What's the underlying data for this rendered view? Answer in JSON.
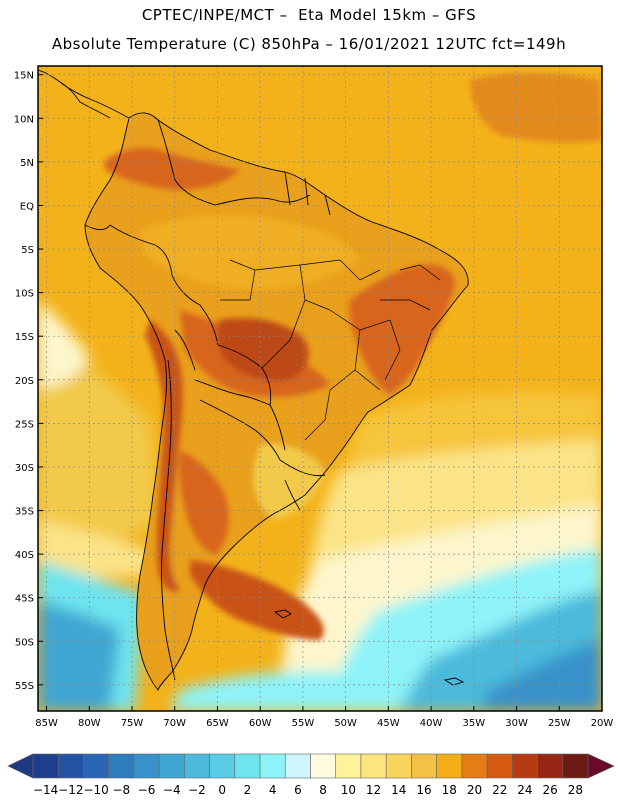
{
  "header": {
    "line1": "CPTEC/INPE/MCT –  Eta Model 15km – GFS",
    "line2": "Absolute Temperature (C) 850hPa – 16/01/2021 12UTC fct=149h"
  },
  "map": {
    "lat_labels": [
      "15N",
      "10N",
      "5N",
      "EQ",
      "5S",
      "10S",
      "15S",
      "20S",
      "25S",
      "30S",
      "35S",
      "40S",
      "45S",
      "50S",
      "55S"
    ],
    "lon_labels": [
      "85W",
      "80W",
      "75W",
      "70W",
      "65W",
      "60W",
      "55W",
      "50W",
      "45W",
      "40W",
      "35W",
      "30W",
      "25W",
      "20W"
    ],
    "lon_range": [
      -86,
      -20
    ],
    "lat_range": [
      -58,
      16
    ],
    "colors": {
      "ocean_warm": "#f3b21a",
      "land_warm": "#e9a01c",
      "hot": "#d8651c",
      "very_hot": "#bd4818",
      "mild": "#f2c94a",
      "cool": "#fbe488",
      "pale": "#fdf6cc",
      "cold": "#5fd3ea",
      "colder": "#3aa7cf",
      "coldest": "#2f86c0",
      "grid": "#8a8a8a",
      "border": "#000000"
    }
  },
  "legend": {
    "labels": [
      "-14",
      "-12",
      "-10",
      "-8",
      "-6",
      "-4",
      "-2",
      "0",
      "2",
      "4",
      "6",
      "8",
      "10",
      "12",
      "14",
      "16",
      "18",
      "20",
      "22",
      "24",
      "26",
      "28"
    ],
    "colors": [
      "#1e3f8c",
      "#2453a3",
      "#2a66b3",
      "#2f7cbf",
      "#3792c9",
      "#40a6d2",
      "#4bbadb",
      "#58cde4",
      "#6ee4ef",
      "#8ef3f8",
      "#cff4fb",
      "#fffbe0",
      "#fff29a",
      "#fde47c",
      "#f9d45c",
      "#f2c246",
      "#f2ae17",
      "#e57d14",
      "#d45a12",
      "#b63a12",
      "#962613",
      "#6b1a14"
    ],
    "low_color": "#1e3a80",
    "high_color": "#6a0a2a"
  }
}
